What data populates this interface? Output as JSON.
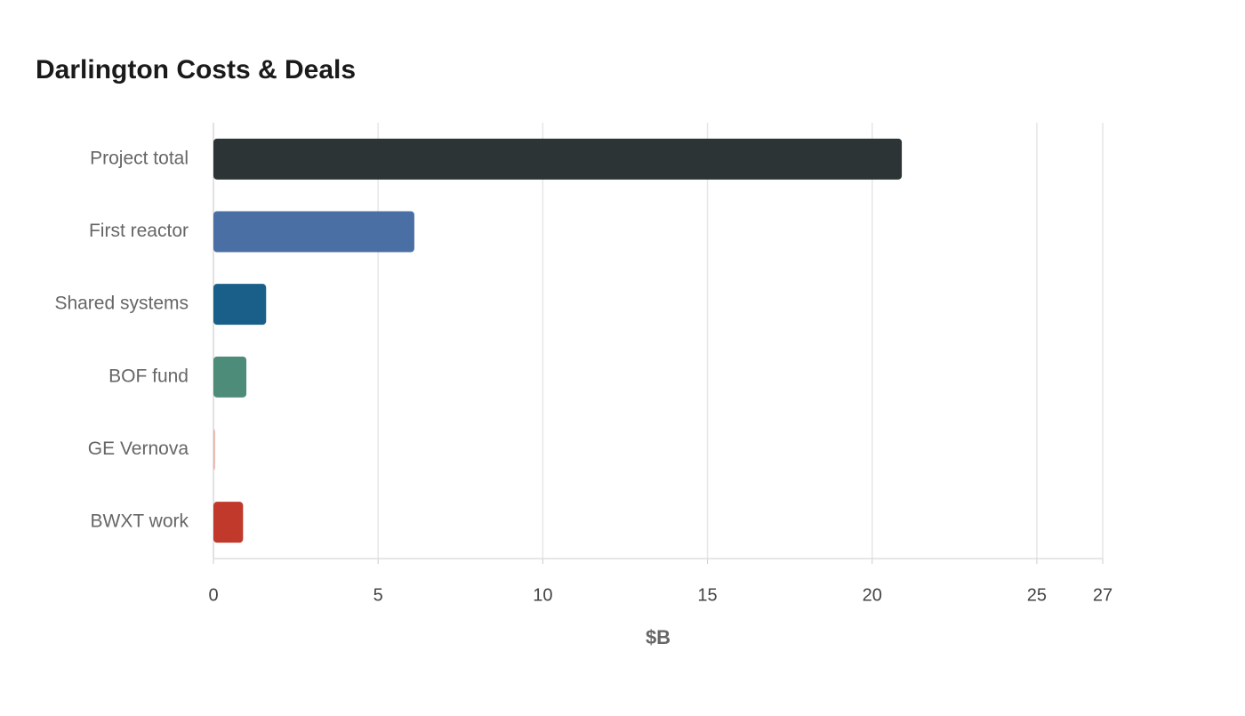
{
  "chart_data": {
    "type": "hbar",
    "title": "Darlington Costs & Deals",
    "x_label": "$B",
    "categories": [
      "Project total",
      "First reactor",
      "Shared systems",
      "BOF fund",
      "GE Vernova",
      "BWXT work"
    ],
    "values": [
      20.9,
      6.1,
      1.6,
      1.0,
      0.05,
      0.9
    ],
    "colors": [
      "#2d3436",
      "#4a6fa5",
      "#1a5f8a",
      "#4e8c7a",
      "#e8b4a8",
      "#c0392b"
    ],
    "xlim": [
      0,
      27
    ],
    "xticks": [
      0,
      5,
      10,
      15,
      20,
      25,
      27
    ],
    "grid": true
  }
}
